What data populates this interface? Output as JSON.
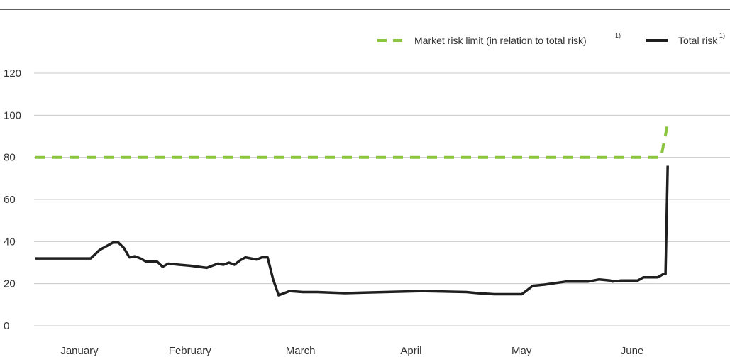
{
  "chart_data": {
    "type": "line",
    "title": "",
    "xlabel": "",
    "ylabel": "",
    "categories": [
      "January",
      "February",
      "March",
      "April",
      "May",
      "June"
    ],
    "yticks": [
      0,
      20,
      40,
      60,
      80,
      100,
      120
    ],
    "ylim": [
      0,
      120
    ],
    "grid": true,
    "legend_position": "top-right",
    "series": [
      {
        "name": "Market risk limit (in relation to total risk)",
        "footnote": "1)",
        "style": "dashed",
        "color": "#8cc63f",
        "x": [
          0,
          5.66,
          5.72
        ],
        "values": [
          80,
          80,
          96
        ]
      },
      {
        "name": "Total risk",
        "footnote": "1)",
        "style": "solid",
        "color": "#1f1f1f",
        "x": [
          0,
          0.5,
          0.58,
          0.7,
          0.75,
          0.8,
          0.85,
          0.9,
          0.95,
          1.0,
          1.05,
          1.1,
          1.15,
          1.2,
          1.3,
          1.4,
          1.55,
          1.6,
          1.65,
          1.7,
          1.75,
          1.8,
          1.85,
          1.9,
          2.0,
          2.05,
          2.1,
          2.15,
          2.2,
          2.3,
          2.42,
          2.55,
          2.8,
          3.5,
          3.9,
          4.0,
          4.15,
          4.3,
          4.4,
          4.5,
          4.6,
          4.8,
          5.0,
          5.1,
          5.2,
          5.22,
          5.3,
          5.45,
          5.5,
          5.61,
          5.63,
          5.68,
          5.7,
          5.72
        ],
        "values": [
          32,
          32,
          36,
          39.5,
          39.5,
          37,
          32.5,
          33,
          32,
          30.5,
          30.5,
          30.5,
          28,
          29.5,
          29,
          28.5,
          27.5,
          28.5,
          29.5,
          29,
          30,
          29,
          31,
          32.5,
          31.5,
          32.5,
          32.5,
          22,
          14.5,
          16.5,
          16,
          16,
          15.5,
          16.5,
          16,
          15.5,
          15,
          15,
          15,
          19,
          19.5,
          21,
          21,
          22,
          21.5,
          21,
          21.5,
          21.5,
          23,
          23,
          23,
          24.5,
          24.5,
          76
        ]
      }
    ]
  }
}
